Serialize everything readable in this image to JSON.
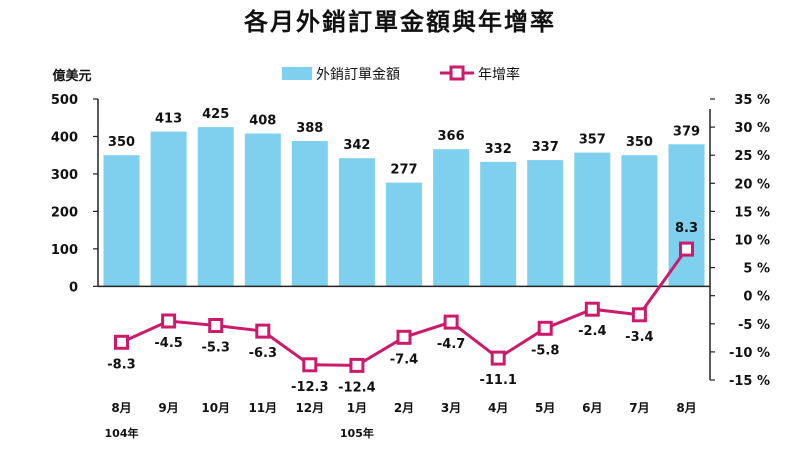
{
  "chart_data": {
    "type": "bar+line",
    "title": "各月外銷訂單金額與年增率",
    "left_unit": "億美元",
    "categories": [
      "8月",
      "9月",
      "10月",
      "11月",
      "12月",
      "1月",
      "2月",
      "3月",
      "4月",
      "5月",
      "6月",
      "7月",
      "8月"
    ],
    "year_labels": [
      {
        "category_index": 0,
        "text": "104年"
      },
      {
        "category_index": 5,
        "text": "105年"
      }
    ],
    "series": [
      {
        "name": "外銷訂單金額",
        "type": "bar",
        "axis": "left",
        "color": "#7fd0ee",
        "values": [
          350,
          413,
          425,
          408,
          388,
          342,
          277,
          366,
          332,
          337,
          357,
          350,
          379
        ],
        "labels": [
          "350",
          "413",
          "425",
          "408",
          "388",
          "342",
          "277",
          "366",
          "332",
          "337",
          "357",
          "350",
          "379"
        ]
      },
      {
        "name": "年增率",
        "type": "line",
        "axis": "right",
        "color": "#cc1b6b",
        "values": [
          -8.3,
          -4.5,
          -5.3,
          -6.3,
          -12.3,
          -12.4,
          -7.4,
          -4.7,
          -11.1,
          -5.8,
          -2.4,
          -3.4,
          8.3
        ],
        "labels": [
          "-8.3",
          "-4.5",
          "-5.3",
          "-6.3",
          "-12.3",
          "-12.4",
          "-7.4",
          "-4.7",
          "-11.1",
          "-5.8",
          "-2.4",
          "-3.4",
          "8.3"
        ]
      }
    ],
    "left_axis": {
      "ylim": [
        -250,
        500
      ],
      "ticks": [
        0,
        100,
        200,
        300,
        400,
        500
      ],
      "tick_labels": [
        "0",
        "100",
        "200",
        "300",
        "400",
        "500"
      ]
    },
    "right_axis": {
      "ylim": [
        -15,
        35
      ],
      "ticks": [
        35,
        30,
        25,
        20,
        15,
        10,
        5,
        0,
        -5,
        -10,
        -15
      ],
      "tick_labels": [
        "35 %",
        "30 %",
        "25 %",
        "20 %",
        "15 %",
        "10 %",
        "5 %",
        "0 %",
        "-5 %",
        "-10 %",
        "-15 %"
      ]
    },
    "grid": false,
    "legend_position": "top-center"
  }
}
